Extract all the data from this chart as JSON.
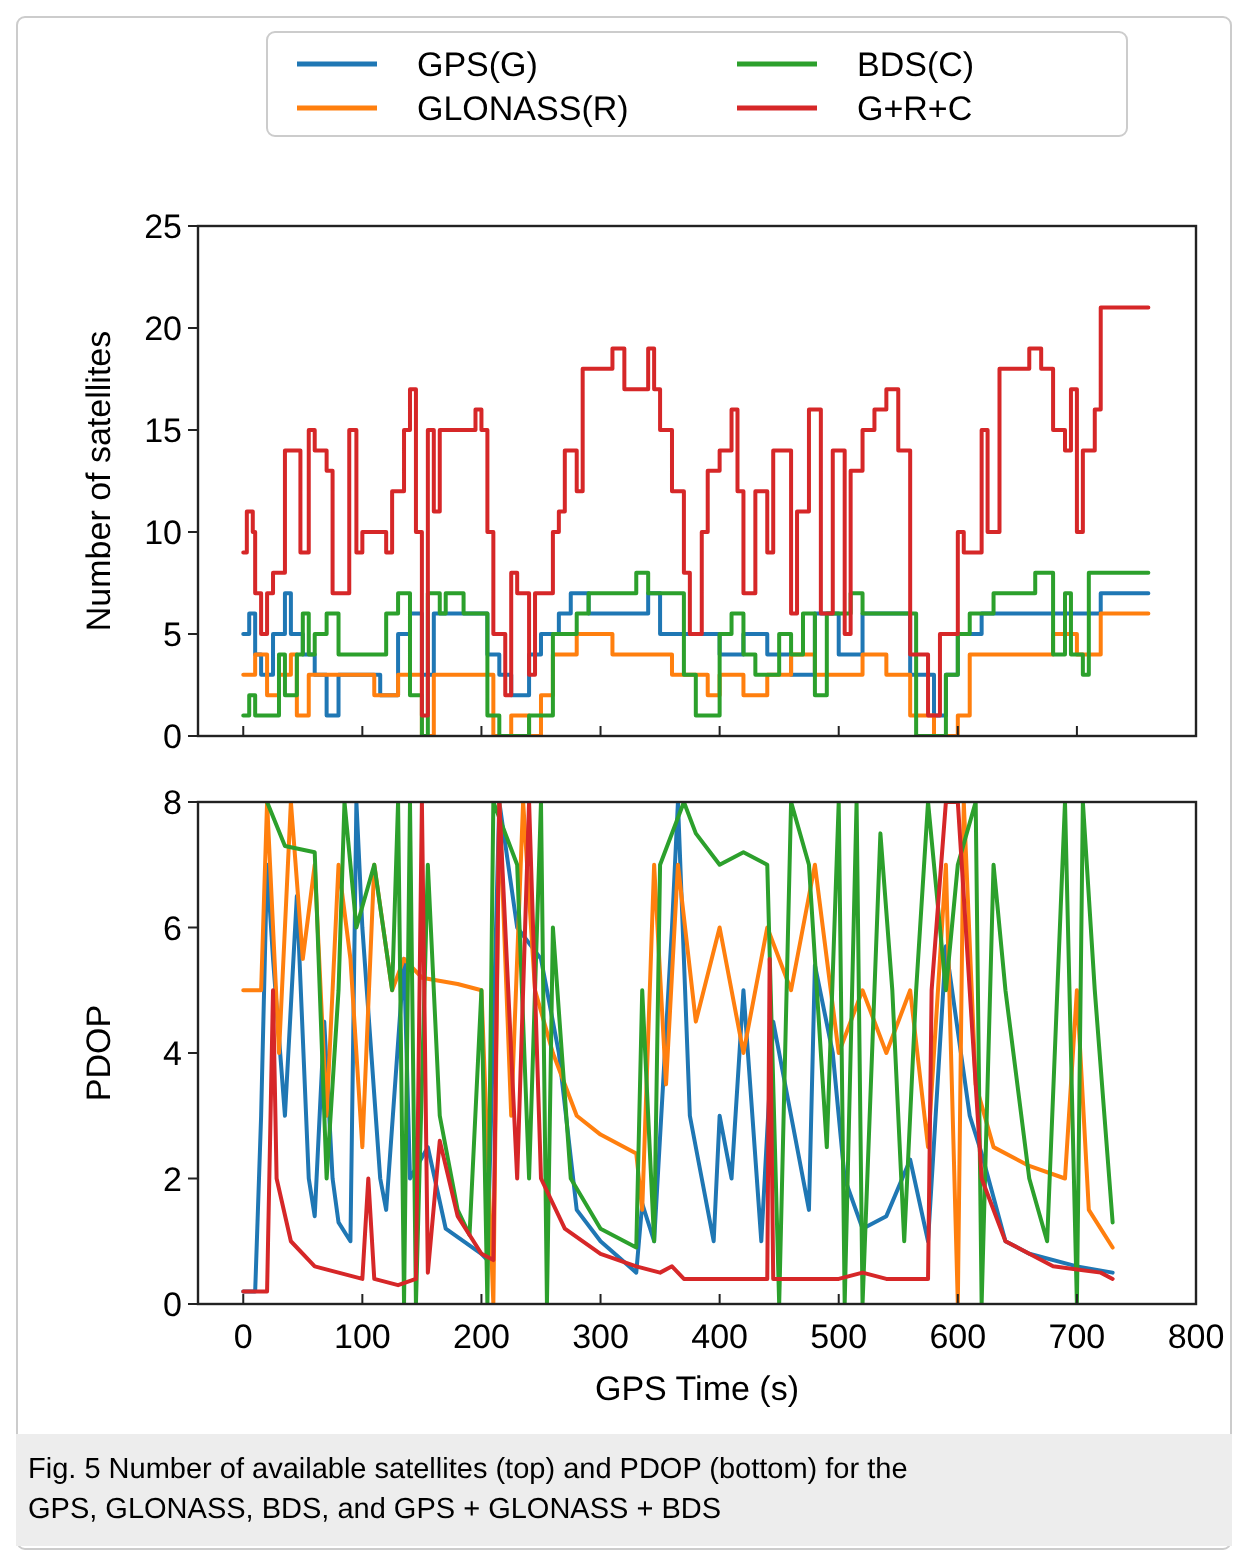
{
  "chart_data": [
    {
      "type": "step",
      "ylabel": "Number of satellites",
      "xlim": [
        -38,
        800
      ],
      "ylim": [
        0,
        25
      ],
      "xticks": [
        0,
        100,
        200,
        300,
        400,
        500,
        600,
        700
      ],
      "yticks": [
        0,
        5,
        10,
        15,
        20,
        25
      ],
      "tick_labels": "y",
      "legend": "top",
      "series": [
        {
          "name": "GPS(G)",
          "color": "#1f77b4",
          "x": [
            0,
            5,
            10,
            15,
            25,
            35,
            40,
            50,
            60,
            70,
            80,
            100,
            115,
            130,
            140,
            150,
            160,
            180,
            200,
            205,
            215,
            225,
            240,
            250,
            265,
            275,
            290,
            320,
            340,
            350,
            360,
            400,
            420,
            440,
            460,
            480,
            500,
            520,
            560,
            580,
            590,
            600,
            620,
            640,
            660,
            700,
            720,
            760
          ],
          "values": [
            5,
            6,
            4,
            3,
            5,
            7,
            5,
            4,
            3,
            1,
            3,
            3,
            2,
            5,
            6,
            3,
            6,
            6,
            6,
            4,
            3,
            2,
            4,
            5,
            6,
            7,
            6,
            6,
            7,
            5,
            5,
            4,
            5,
            4,
            3,
            6,
            4,
            6,
            3,
            1,
            3,
            5,
            6,
            6,
            6,
            6,
            7,
            7
          ]
        },
        {
          "name": "GLONASS(R)",
          "color": "#ff7f0e",
          "x": [
            0,
            10,
            20,
            30,
            40,
            45,
            55,
            100,
            110,
            130,
            150,
            160,
            200,
            210,
            225,
            240,
            250,
            260,
            280,
            300,
            310,
            350,
            360,
            390,
            400,
            420,
            440,
            460,
            480,
            500,
            520,
            540,
            560,
            580,
            600,
            610,
            650,
            680,
            700,
            720,
            760
          ],
          "values": [
            3,
            4,
            2,
            3,
            4,
            1,
            3,
            3,
            2,
            3,
            0,
            3,
            3,
            0,
            1,
            0,
            2,
            4,
            5,
            5,
            4,
            4,
            3,
            2,
            3,
            2,
            3,
            4,
            3,
            3,
            4,
            3,
            1,
            0,
            1,
            4,
            4,
            5,
            4,
            6,
            6
          ]
        },
        {
          "name": "BDS(C)",
          "color": "#2ca02c",
          "x": [
            0,
            5,
            10,
            25,
            30,
            35,
            45,
            50,
            55,
            60,
            70,
            80,
            90,
            110,
            120,
            130,
            140,
            150,
            155,
            165,
            170,
            185,
            200,
            205,
            215,
            225,
            240,
            260,
            280,
            290,
            320,
            330,
            340,
            360,
            370,
            380,
            395,
            400,
            410,
            420,
            430,
            450,
            460,
            470,
            480,
            490,
            510,
            520,
            550,
            565,
            575,
            590,
            600,
            610,
            630,
            650,
            665,
            680,
            690,
            695,
            705,
            710,
            760
          ],
          "values": [
            1,
            2,
            1,
            1,
            4,
            2,
            4,
            6,
            4,
            5,
            6,
            4,
            4,
            4,
            6,
            7,
            2,
            0,
            7,
            6,
            7,
            6,
            6,
            1,
            0,
            0,
            1,
            5,
            6,
            7,
            7,
            8,
            7,
            7,
            3,
            1,
            1,
            5,
            6,
            4,
            3,
            5,
            4,
            6,
            2,
            6,
            7,
            6,
            6,
            0,
            0,
            3,
            5,
            6,
            7,
            7,
            8,
            4,
            7,
            4,
            3,
            8,
            8
          ]
        },
        {
          "name": "G+R+C",
          "color": "#d62728",
          "x": [
            0,
            3,
            8,
            10,
            15,
            20,
            25,
            35,
            45,
            48,
            55,
            60,
            65,
            70,
            75,
            89,
            95,
            100,
            120,
            125,
            135,
            140,
            145,
            150,
            155,
            160,
            165,
            190,
            195,
            200,
            205,
            210,
            220,
            225,
            230,
            240,
            245,
            255,
            260,
            265,
            270,
            275,
            280,
            285,
            300,
            310,
            320,
            330,
            340,
            345,
            350,
            360,
            370,
            375,
            385,
            390,
            400,
            410,
            415,
            420,
            430,
            440,
            445,
            455,
            460,
            465,
            475,
            480,
            485,
            495,
            505,
            510,
            520,
            530,
            540,
            550,
            560,
            575,
            585,
            590,
            600,
            605,
            620,
            625,
            635,
            650,
            660,
            670,
            680,
            690,
            695,
            700,
            705,
            715,
            720,
            760
          ],
          "values": [
            9,
            11,
            10,
            7,
            5,
            7,
            8,
            14,
            14,
            9,
            15,
            14,
            14,
            13,
            7,
            15,
            9,
            10,
            9,
            12,
            15,
            17,
            10,
            1,
            15,
            11,
            15,
            15,
            16,
            15,
            10,
            5,
            2,
            8,
            7,
            3,
            7,
            7,
            10,
            11,
            14,
            14,
            12,
            18,
            18,
            19,
            17,
            17,
            19,
            17,
            15,
            12,
            8,
            5,
            10,
            13,
            14,
            16,
            12,
            7,
            12,
            9,
            14,
            14,
            6,
            11,
            16,
            16,
            6,
            14,
            5,
            13,
            15,
            16,
            17,
            14,
            4,
            1,
            5,
            5,
            10,
            9,
            15,
            10,
            18,
            18,
            19,
            18,
            15,
            14,
            17,
            10,
            14,
            16,
            21,
            21
          ]
        }
      ]
    },
    {
      "type": "line",
      "ylabel": "PDOP",
      "xlabel": "GPS Time (s)",
      "xlim": [
        -38,
        800
      ],
      "ylim": [
        0,
        8
      ],
      "xticks": [
        0,
        100,
        200,
        300,
        400,
        500,
        600,
        700,
        800
      ],
      "yticks": [
        0,
        2,
        4,
        6,
        8
      ],
      "annotations": [
        "Fig. 5  Number of available satellites (top) and PDOP (bottom) for the GPS, GLONASS, BDS, and GPS + GLONASS + BDS"
      ],
      "series": [
        {
          "color": "#1f77b4",
          "x": [
            0,
            10,
            15,
            20,
            25,
            35,
            45,
            55,
            60,
            68,
            75,
            80,
            90,
            95,
            100,
            115,
            120,
            135,
            140,
            155,
            170,
            200,
            205,
            215,
            230,
            250,
            265,
            280,
            300,
            330,
            335,
            345,
            360,
            365,
            375,
            385,
            395,
            400,
            410,
            420,
            435,
            445,
            460,
            475,
            480,
            495,
            505,
            520,
            540,
            560,
            575,
            590,
            610,
            620,
            640,
            660,
            700,
            730
          ],
          "values": [
            0.2,
            0.2,
            3,
            7,
            5.5,
            3,
            6.5,
            2,
            1.4,
            4.5,
            2,
            1.3,
            1,
            8,
            6,
            2,
            1.5,
            5.5,
            2,
            2.5,
            1.2,
            0.8,
            0.7,
            8,
            6,
            5.5,
            4,
            1.5,
            1,
            0.5,
            1.6,
            1,
            6,
            8,
            3,
            2,
            1,
            3,
            2,
            5,
            1,
            4.5,
            3,
            1.5,
            5.4,
            4,
            2,
            1.2,
            1.4,
            2.3,
            1,
            5.7,
            3,
            2.4,
            1,
            0.8,
            0.6,
            0.5
          ]
        },
        {
          "color": "#ff7f0e",
          "x": [
            0,
            15,
            20,
            30,
            40,
            50,
            60,
            70,
            80,
            90,
            100,
            110,
            125,
            135,
            150,
            180,
            200,
            210,
            215,
            225,
            235,
            245,
            260,
            280,
            300,
            330,
            335,
            345,
            355,
            365,
            380,
            400,
            420,
            440,
            460,
            480,
            500,
            520,
            540,
            560,
            575,
            590,
            600,
            605,
            615,
            630,
            660,
            690,
            700,
            710,
            730
          ],
          "values": [
            5,
            5,
            8,
            4,
            8,
            5.5,
            7,
            3,
            7,
            5.5,
            2.5,
            7,
            5,
            5.5,
            5.2,
            5.1,
            5,
            0,
            8,
            3,
            8,
            5,
            4,
            3,
            2.7,
            2.4,
            1.5,
            7,
            3.5,
            7,
            4.5,
            6,
            4,
            6,
            5,
            7,
            4,
            5,
            4,
            5,
            2.5,
            7,
            0,
            8,
            3.5,
            2.5,
            2.2,
            2,
            5,
            1.5,
            0.9
          ]
        },
        {
          "color": "#2ca02c",
          "x": [
            20,
            35,
            60,
            70,
            80,
            85,
            95,
            110,
            125,
            130,
            135,
            140,
            145,
            155,
            165,
            180,
            190,
            200,
            205,
            210,
            230,
            240,
            250,
            255,
            260,
            275,
            300,
            330,
            335,
            345,
            350,
            370,
            380,
            400,
            420,
            440,
            450,
            460,
            475,
            490,
            500,
            505,
            515,
            520,
            535,
            545,
            555,
            565,
            575,
            590,
            600,
            615,
            620,
            630,
            640,
            660,
            675,
            690,
            700,
            705,
            715,
            730
          ],
          "values": [
            8,
            7.3,
            7.2,
            2,
            5,
            8,
            6,
            7,
            5,
            8,
            0,
            8,
            0,
            7,
            3,
            1.5,
            1.1,
            5,
            0,
            8,
            7,
            2,
            8,
            0,
            6,
            2,
            1.2,
            0.9,
            5,
            1,
            7,
            8,
            7.5,
            7,
            7.2,
            7,
            0,
            8,
            7,
            2.5,
            8,
            0,
            8,
            0,
            7.5,
            5,
            1,
            5,
            8,
            5,
            7,
            8,
            0,
            7,
            5,
            2,
            1,
            8,
            0,
            8,
            5,
            1.3
          ]
        },
        {
          "color": "#d62728",
          "x": [
            0,
            20,
            25,
            28,
            40,
            60,
            80,
            100,
            105,
            110,
            130,
            145,
            150,
            155,
            165,
            180,
            200,
            210,
            215,
            230,
            240,
            250,
            270,
            300,
            330,
            350,
            360,
            370,
            400,
            440,
            442,
            445,
            480,
            500,
            520,
            540,
            560,
            575,
            578,
            590,
            600,
            610,
            620,
            640,
            680,
            720,
            730
          ],
          "values": [
            0.2,
            0.2,
            5,
            2,
            1,
            0.6,
            0.5,
            0.4,
            2,
            0.4,
            0.3,
            0.4,
            8,
            0.5,
            2.6,
            1.4,
            0.8,
            0.7,
            8,
            2,
            8,
            2,
            1.2,
            0.8,
            0.6,
            0.5,
            0.6,
            0.4,
            0.4,
            0.4,
            5.5,
            0.4,
            0.4,
            0.4,
            0.5,
            0.4,
            0.4,
            0.4,
            5,
            8,
            8,
            5,
            2,
            1,
            0.6,
            0.5,
            0.4
          ]
        }
      ]
    }
  ]
}
